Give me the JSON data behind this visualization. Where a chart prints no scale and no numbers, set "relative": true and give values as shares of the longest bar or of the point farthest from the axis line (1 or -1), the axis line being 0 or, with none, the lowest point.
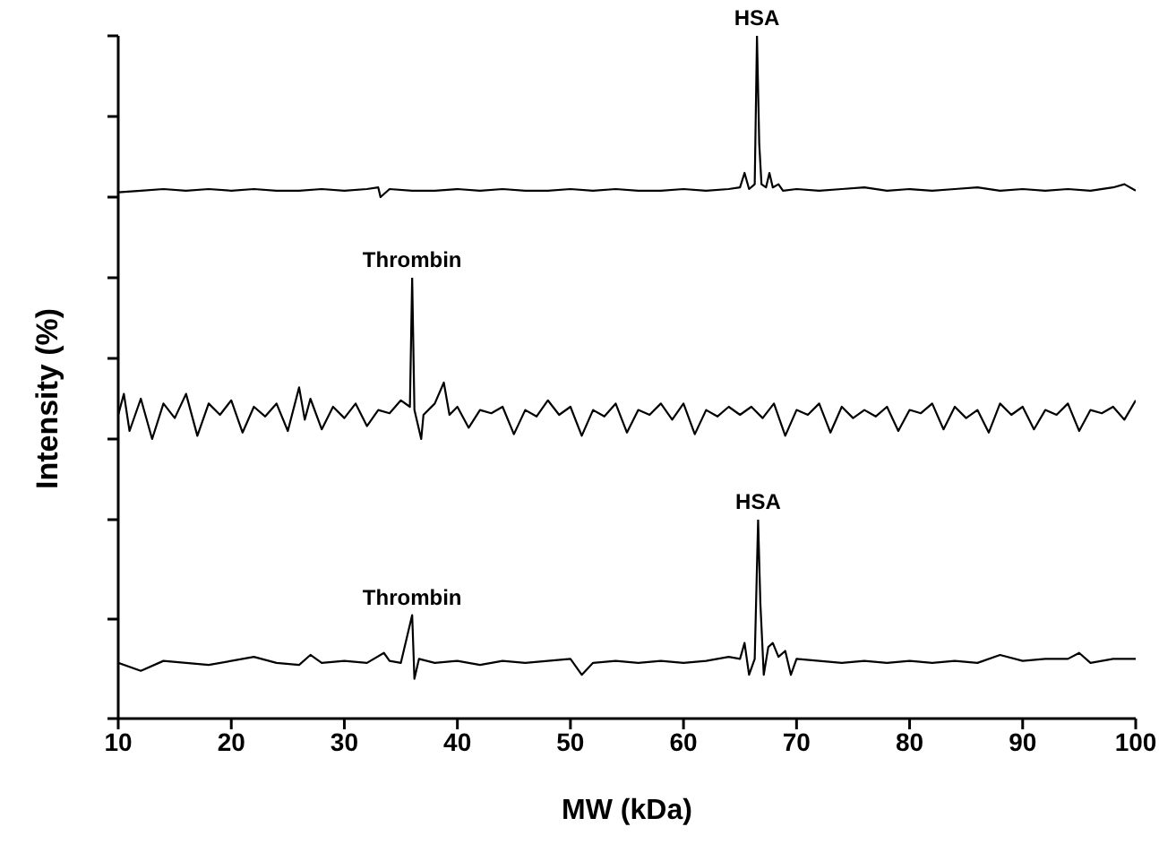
{
  "chart_data": [
    {
      "type": "line",
      "relative": true,
      "xlim": [
        10,
        100
      ],
      "tick_labels": false,
      "annotations": [
        {
          "text": "HSA",
          "x": 66.5,
          "y": 1
        }
      ],
      "series": [
        {
          "color": "#000000",
          "x": [
            10,
            12,
            14,
            16,
            18,
            20,
            22,
            24,
            26,
            28,
            30,
            32,
            33,
            33.2,
            34,
            36,
            38,
            40,
            42,
            44,
            46,
            48,
            50,
            52,
            54,
            56,
            58,
            60,
            62,
            64,
            65,
            65.4,
            65.8,
            66.3,
            66.5,
            66.7,
            66.9,
            67.3,
            67.6,
            67.9,
            68.4,
            68.8,
            70,
            72,
            74,
            76,
            78,
            80,
            82,
            84,
            86,
            88,
            90,
            92,
            94,
            96,
            98,
            99,
            100
          ],
          "values": [
            0.03,
            0.04,
            0.05,
            0.04,
            0.05,
            0.04,
            0.05,
            0.04,
            0.04,
            0.05,
            0.04,
            0.05,
            0.06,
            0,
            0.05,
            0.04,
            0.04,
            0.05,
            0.04,
            0.05,
            0.04,
            0.04,
            0.05,
            0.04,
            0.05,
            0.04,
            0.04,
            0.05,
            0.04,
            0.05,
            0.06,
            0.15,
            0.05,
            0.08,
            1,
            0.33,
            0.08,
            0.06,
            0.15,
            0.06,
            0.08,
            0.04,
            0.05,
            0.04,
            0.05,
            0.06,
            0.04,
            0.05,
            0.04,
            0.05,
            0.06,
            0.04,
            0.05,
            0.04,
            0.05,
            0.04,
            0.06,
            0.08,
            0.04
          ]
        }
      ]
    },
    {
      "type": "line",
      "relative": true,
      "xlim": [
        10,
        100
      ],
      "tick_labels": false,
      "ylabel": "Intensity (%)",
      "annotations": [
        {
          "text": "Thrombin",
          "x": 36,
          "y": 1
        }
      ],
      "series": [
        {
          "color": "#000000",
          "x": [
            10,
            10.5,
            11,
            12,
            13,
            14,
            15,
            16,
            17,
            18,
            19,
            20,
            21,
            22,
            23,
            24,
            25,
            26,
            26.5,
            27,
            28,
            29,
            30,
            31,
            32,
            33,
            34,
            35,
            35.8,
            36,
            36.2,
            36.8,
            37,
            38,
            38.8,
            39.3,
            40,
            41,
            42,
            43,
            44,
            45,
            46,
            47,
            48,
            49,
            50,
            51,
            52,
            53,
            54,
            55,
            56,
            57,
            58,
            59,
            60,
            61,
            62,
            63,
            64,
            65,
            66,
            67,
            68,
            69,
            70,
            71,
            72,
            73,
            74,
            75,
            76,
            77,
            78,
            79,
            80,
            81,
            82,
            83,
            84,
            85,
            86,
            87,
            88,
            89,
            90,
            91,
            92,
            93,
            94,
            95,
            96,
            97,
            98,
            99,
            100
          ],
          "values": [
            0.15,
            0.28,
            0.05,
            0.25,
            0,
            0.22,
            0.13,
            0.28,
            0.02,
            0.22,
            0.15,
            0.24,
            0.04,
            0.2,
            0.14,
            0.22,
            0.05,
            0.32,
            0.12,
            0.25,
            0.06,
            0.2,
            0.13,
            0.22,
            0.08,
            0.18,
            0.16,
            0.24,
            0.2,
            1,
            0.18,
            0,
            0.15,
            0.22,
            0.35,
            0.15,
            0.2,
            0.07,
            0.18,
            0.16,
            0.2,
            0.03,
            0.18,
            0.14,
            0.24,
            0.15,
            0.2,
            0.02,
            0.18,
            0.14,
            0.22,
            0.04,
            0.18,
            0.15,
            0.22,
            0.12,
            0.22,
            0.03,
            0.18,
            0.14,
            0.2,
            0.15,
            0.2,
            0.13,
            0.22,
            0.02,
            0.18,
            0.15,
            0.22,
            0.04,
            0.2,
            0.13,
            0.18,
            0.14,
            0.2,
            0.05,
            0.18,
            0.16,
            0.22,
            0.06,
            0.2,
            0.13,
            0.18,
            0.04,
            0.22,
            0.15,
            0.2,
            0.06,
            0.18,
            0.15,
            0.22,
            0.05,
            0.18,
            0.16,
            0.2,
            0.12,
            0.24
          ]
        }
      ]
    },
    {
      "type": "line",
      "relative": true,
      "xlim": [
        10,
        100
      ],
      "tick_labels": "x",
      "xlabel": "MW (kDa)",
      "xticks": [
        10,
        20,
        30,
        40,
        50,
        60,
        70,
        80,
        90,
        100
      ],
      "annotations": [
        {
          "text": "Thrombin",
          "x": 36,
          "y": 0.52
        },
        {
          "text": "HSA",
          "x": 66.6,
          "y": 1
        }
      ],
      "series": [
        {
          "color": "#000000",
          "x": [
            10,
            12,
            14,
            16,
            18,
            20,
            22,
            24,
            26,
            27,
            28,
            30,
            32,
            33.5,
            34,
            35,
            36,
            36.2,
            36.6,
            38,
            40,
            42,
            44,
            46,
            48,
            50,
            51,
            52,
            54,
            56,
            58,
            60,
            62,
            64,
            65,
            65.4,
            65.8,
            66.3,
            66.6,
            66.8,
            67.1,
            67.5,
            67.9,
            68.4,
            69,
            69.5,
            70,
            72,
            74,
            76,
            78,
            80,
            82,
            84,
            86,
            88,
            90,
            92,
            94,
            95,
            96,
            98,
            100
          ],
          "values": [
            0.28,
            0.24,
            0.29,
            0.28,
            0.27,
            0.29,
            0.31,
            0.28,
            0.27,
            0.32,
            0.28,
            0.29,
            0.28,
            0.33,
            0.29,
            0.28,
            0.52,
            0.2,
            0.3,
            0.28,
            0.29,
            0.27,
            0.29,
            0.28,
            0.29,
            0.3,
            0.22,
            0.28,
            0.29,
            0.28,
            0.29,
            0.28,
            0.29,
            0.31,
            0.3,
            0.38,
            0.22,
            0.3,
            1,
            0.58,
            0.22,
            0.36,
            0.38,
            0.31,
            0.34,
            0.22,
            0.3,
            0.29,
            0.28,
            0.29,
            0.28,
            0.29,
            0.28,
            0.29,
            0.28,
            0.32,
            0.29,
            0.3,
            0.3,
            0.33,
            0.28,
            0.3,
            0.3
          ]
        }
      ]
    }
  ]
}
